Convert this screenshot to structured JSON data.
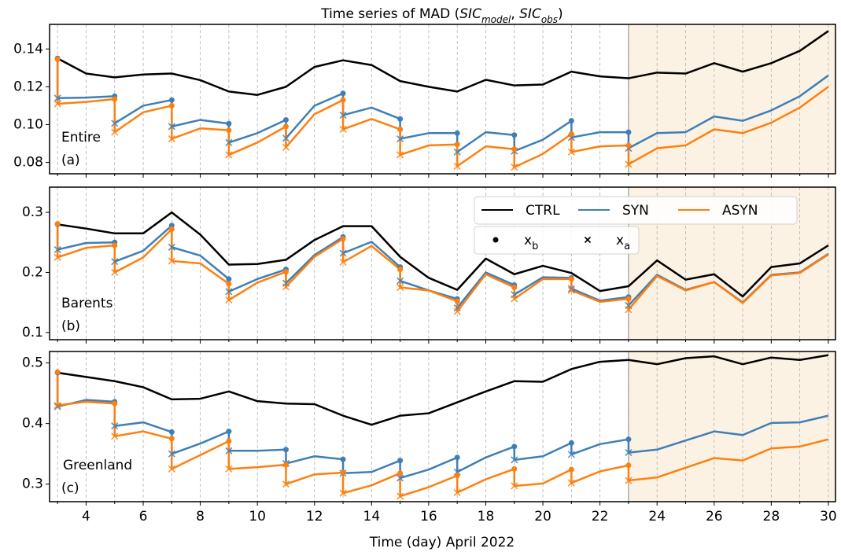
{
  "chart_data": [
    {
      "type": "line",
      "title_parts": [
        {
          "text": "Time series of MAD ("
        },
        {
          "text": "SIC",
          "italic": true
        },
        {
          "text": "model",
          "italic": true,
          "sub": true
        },
        {
          "text": ", "
        },
        {
          "text": "SIC",
          "italic": true
        },
        {
          "text": "obs",
          "italic": true,
          "sub": true
        },
        {
          "text": ")"
        }
      ],
      "region": "Entire",
      "label": "(a)",
      "xlim": [
        2.72,
        30.25
      ],
      "xticks": [
        4,
        6,
        8,
        10,
        12,
        14,
        16,
        18,
        20,
        22,
        24,
        26,
        28,
        30
      ],
      "xminor_ticks": [
        3,
        5,
        7,
        9,
        11,
        13,
        15,
        17,
        19,
        21,
        23,
        25,
        27,
        29
      ],
      "show_xtick_labels": false,
      "ylim": [
        0.074,
        0.153
      ],
      "yticks": [
        0.08,
        {
          "value": 0.1,
          "label": "0.10"
        },
        0.12,
        0.14
      ],
      "grid": true,
      "shaded_from": 23,
      "shade_color": "#fcf2e4",
      "series": [
        {
          "name": "CTRL",
          "color": "#000000",
          "x": [
            3,
            4,
            5,
            6,
            7,
            8,
            9,
            10,
            11,
            12,
            13,
            14,
            15,
            16,
            17,
            18,
            19,
            20,
            21,
            22,
            23,
            24,
            25,
            26,
            27,
            28,
            29,
            30
          ],
          "values": [
            0.135,
            0.127,
            0.125,
            0.1265,
            0.127,
            0.1235,
            0.1175,
            0.1157,
            0.12,
            0.1305,
            0.134,
            0.1315,
            0.123,
            0.12,
            0.1175,
            0.1237,
            0.1207,
            0.1212,
            0.128,
            0.1255,
            0.1245,
            0.1275,
            0.127,
            0.1325,
            0.128,
            0.1325,
            0.139,
            0.1495
          ]
        },
        {
          "name": "SYN",
          "color": "#3f7fb6",
          "x": [
            3,
            3,
            4,
            5,
            5,
            6,
            7,
            7,
            8,
            9,
            9,
            10,
            11,
            11,
            12,
            13,
            13,
            14,
            15,
            15,
            16,
            17,
            17,
            18,
            19,
            19,
            20,
            21,
            21,
            22,
            23,
            23,
            24,
            25,
            26,
            27,
            28,
            29,
            30
          ],
          "markers": [
            "o",
            "x",
            null,
            "o",
            "x",
            null,
            "o",
            "x",
            null,
            "o",
            "x",
            null,
            "o",
            "x",
            null,
            "o",
            "x",
            null,
            "o",
            "x",
            null,
            "o",
            "x",
            null,
            "o",
            "x",
            null,
            "o",
            "x",
            null,
            "o",
            "x",
            null,
            null,
            null,
            null,
            null,
            null,
            null
          ],
          "values": [
            0.135,
            0.114,
            0.1143,
            0.115,
            0.1007,
            0.11,
            0.113,
            0.099,
            0.1025,
            0.1005,
            0.0905,
            0.0955,
            0.1025,
            0.0928,
            0.11,
            0.1165,
            0.105,
            0.109,
            0.103,
            0.0925,
            0.0955,
            0.0955,
            0.0855,
            0.096,
            0.0945,
            0.086,
            0.092,
            0.102,
            0.0932,
            0.096,
            0.096,
            0.0875,
            0.0955,
            0.096,
            0.1043,
            0.102,
            0.1075,
            0.115,
            0.126
          ]
        },
        {
          "name": "ASYN",
          "color": "#ff7f0e",
          "x": [
            3,
            3,
            4,
            5,
            5,
            6,
            7,
            7,
            8,
            9,
            9,
            10,
            11,
            11,
            12,
            13,
            13,
            14,
            15,
            15,
            16,
            17,
            17,
            18,
            19,
            19,
            20,
            21,
            21,
            22,
            23,
            23,
            24,
            25,
            26,
            27,
            28,
            29,
            30
          ],
          "markers": [
            "o",
            "x",
            null,
            "o",
            "x",
            null,
            "o",
            "x",
            null,
            "o",
            "x",
            null,
            "o",
            "x",
            null,
            "o",
            "x",
            null,
            "o",
            "x",
            null,
            "o",
            "x",
            null,
            "o",
            "x",
            null,
            "o",
            "x",
            null,
            "o",
            "x",
            null,
            null,
            null,
            null,
            null,
            null,
            null
          ],
          "values": [
            0.1345,
            0.111,
            0.112,
            0.1135,
            0.096,
            0.1065,
            0.11,
            0.0925,
            0.098,
            0.097,
            0.084,
            0.0905,
            0.099,
            0.088,
            0.1055,
            0.113,
            0.0975,
            0.103,
            0.0975,
            0.084,
            0.089,
            0.0895,
            0.078,
            0.0885,
            0.087,
            0.0775,
            0.0845,
            0.095,
            0.0855,
            0.0885,
            0.089,
            0.079,
            0.0875,
            0.089,
            0.0975,
            0.0955,
            0.101,
            0.109,
            0.12
          ]
        }
      ]
    },
    {
      "type": "line",
      "region": "Barents",
      "label": "(b)",
      "xlim": [
        2.72,
        30.25
      ],
      "xticks": [
        4,
        6,
        8,
        10,
        12,
        14,
        16,
        18,
        20,
        22,
        24,
        26,
        28,
        30
      ],
      "xminor_ticks": [
        3,
        5,
        7,
        9,
        11,
        13,
        15,
        17,
        19,
        21,
        23,
        25,
        27,
        29
      ],
      "show_xtick_labels": false,
      "ylim": [
        0.088,
        0.342
      ],
      "yticks": [
        0.1,
        0.2,
        0.3
      ],
      "grid": true,
      "shaded_from": 23,
      "shade_color": "#fcf2e4",
      "legend": true,
      "marker_legend": [
        {
          "marker": "o",
          "text": "x",
          "sub": "b"
        },
        {
          "marker": "x",
          "text": "x",
          "sub": "a"
        }
      ],
      "series": [
        {
          "name": "CTRL",
          "color": "#000000",
          "x": [
            3,
            4,
            5,
            6,
            7,
            8,
            9,
            10,
            11,
            12,
            13,
            14,
            15,
            16,
            17,
            18,
            19,
            20,
            21,
            22,
            23,
            24,
            25,
            26,
            27,
            28,
            29,
            30
          ],
          "values": [
            0.28,
            0.273,
            0.265,
            0.265,
            0.3,
            0.263,
            0.213,
            0.214,
            0.221,
            0.254,
            0.277,
            0.277,
            0.226,
            0.191,
            0.171,
            0.223,
            0.197,
            0.211,
            0.199,
            0.169,
            0.177,
            0.22,
            0.188,
            0.197,
            0.16,
            0.209,
            0.215,
            0.245
          ]
        },
        {
          "name": "SYN",
          "color": "#3f7fb6",
          "x": [
            3,
            3,
            4,
            5,
            5,
            6,
            7,
            7,
            8,
            9,
            9,
            10,
            11,
            11,
            12,
            13,
            13,
            14,
            15,
            15,
            16,
            17,
            17,
            18,
            19,
            19,
            20,
            21,
            21,
            22,
            23,
            23,
            24,
            25,
            26,
            27,
            28,
            29,
            30
          ],
          "markers": [
            "o",
            "x",
            null,
            "o",
            "x",
            null,
            "o",
            "x",
            null,
            "o",
            "x",
            null,
            "o",
            "x",
            null,
            "o",
            "x",
            null,
            "o",
            "x",
            null,
            "o",
            "x",
            null,
            "o",
            "x",
            null,
            "o",
            "x",
            null,
            "o",
            "x",
            null,
            null,
            null,
            null,
            null,
            null,
            null
          ],
          "values": [
            0.28,
            0.238,
            0.249,
            0.25,
            0.218,
            0.236,
            0.278,
            0.242,
            0.228,
            0.189,
            0.168,
            0.189,
            0.205,
            0.182,
            0.229,
            0.259,
            0.232,
            0.251,
            0.209,
            0.186,
            0.17,
            0.156,
            0.141,
            0.2,
            0.179,
            0.163,
            0.192,
            0.191,
            0.173,
            0.153,
            0.159,
            0.145,
            0.196,
            0.171,
            0.184,
            0.15,
            0.196,
            0.2,
            0.231
          ]
        },
        {
          "name": "ASYN",
          "color": "#ff7f0e",
          "x": [
            3,
            3,
            4,
            5,
            5,
            6,
            7,
            7,
            8,
            9,
            9,
            10,
            11,
            11,
            12,
            13,
            13,
            14,
            15,
            15,
            16,
            17,
            17,
            18,
            19,
            19,
            20,
            21,
            21,
            22,
            23,
            23,
            24,
            25,
            26,
            27,
            28,
            29,
            30
          ],
          "markers": [
            "o",
            "x",
            null,
            "o",
            "x",
            null,
            "o",
            "x",
            null,
            "o",
            "x",
            null,
            "o",
            "x",
            null,
            "o",
            "x",
            null,
            "o",
            "x",
            null,
            "o",
            "x",
            null,
            "o",
            "x",
            null,
            "o",
            "x",
            null,
            "o",
            "x",
            null,
            null,
            null,
            null,
            null,
            null,
            null
          ],
          "values": [
            0.281,
            0.225,
            0.241,
            0.245,
            0.2,
            0.225,
            0.272,
            0.219,
            0.215,
            0.181,
            0.154,
            0.183,
            0.201,
            0.176,
            0.226,
            0.256,
            0.217,
            0.244,
            0.205,
            0.175,
            0.17,
            0.152,
            0.135,
            0.197,
            0.175,
            0.156,
            0.189,
            0.189,
            0.17,
            0.151,
            0.156,
            0.138,
            0.194,
            0.17,
            0.184,
            0.149,
            0.195,
            0.199,
            0.23
          ]
        }
      ]
    },
    {
      "type": "line",
      "region": "Greenland",
      "label": "(c)",
      "xlabel": "Time (day) April 2022",
      "xlim": [
        2.72,
        30.25
      ],
      "xticks": [
        4,
        6,
        8,
        10,
        12,
        14,
        16,
        18,
        20,
        22,
        24,
        26,
        28,
        30
      ],
      "xminor_ticks": [
        3,
        5,
        7,
        9,
        11,
        13,
        15,
        17,
        19,
        21,
        23,
        25,
        27,
        29
      ],
      "show_xtick_labels": true,
      "ylim": [
        0.271,
        0.519
      ],
      "yticks": [
        0.3,
        0.4,
        0.5
      ],
      "grid": true,
      "shaded_from": 23,
      "shade_color": "#fcf2e4",
      "series": [
        {
          "name": "CTRL",
          "color": "#000000",
          "x": [
            3,
            4,
            5,
            6,
            7,
            8,
            9,
            10,
            11,
            12,
            13,
            14,
            15,
            16,
            17,
            18,
            19,
            20,
            21,
            22,
            23,
            24,
            25,
            26,
            27,
            28,
            29,
            30
          ],
          "values": [
            0.484,
            0.477,
            0.47,
            0.46,
            0.44,
            0.441,
            0.453,
            0.437,
            0.433,
            0.432,
            0.413,
            0.398,
            0.413,
            0.417,
            0.435,
            0.453,
            0.47,
            0.469,
            0.49,
            0.502,
            0.505,
            0.498,
            0.508,
            0.511,
            0.498,
            0.509,
            0.505,
            0.513
          ]
        },
        {
          "name": "SYN",
          "color": "#3f7fb6",
          "x": [
            3,
            3,
            4,
            5,
            5,
            6,
            7,
            7,
            8,
            9,
            9,
            10,
            11,
            11,
            12,
            13,
            13,
            14,
            15,
            15,
            16,
            17,
            17,
            18,
            19,
            19,
            20,
            21,
            21,
            22,
            23,
            23,
            24,
            25,
            26,
            27,
            28,
            29,
            30
          ],
          "markers": [
            "o",
            "x",
            null,
            "o",
            "x",
            null,
            "o",
            "x",
            null,
            "o",
            "x",
            null,
            "o",
            "x",
            null,
            "o",
            "x",
            null,
            "o",
            "x",
            null,
            "o",
            "x",
            null,
            "o",
            "x",
            null,
            "o",
            "x",
            null,
            "o",
            "x",
            null,
            null,
            null,
            null,
            null,
            null,
            null
          ],
          "values": [
            0.484,
            0.428,
            0.439,
            0.436,
            0.396,
            0.402,
            0.386,
            0.35,
            0.367,
            0.387,
            0.355,
            0.355,
            0.357,
            0.334,
            0.346,
            0.341,
            0.318,
            0.32,
            0.339,
            0.31,
            0.324,
            0.344,
            0.32,
            0.344,
            0.362,
            0.34,
            0.346,
            0.368,
            0.349,
            0.366,
            0.374,
            0.352,
            0.357,
            0.372,
            0.387,
            0.381,
            0.401,
            0.402,
            0.413
          ]
        },
        {
          "name": "ASYN",
          "color": "#ff7f0e",
          "x": [
            3,
            3,
            4,
            5,
            5,
            6,
            7,
            7,
            8,
            9,
            9,
            10,
            11,
            11,
            12,
            13,
            13,
            14,
            15,
            15,
            16,
            17,
            17,
            18,
            19,
            19,
            20,
            21,
            21,
            22,
            23,
            23,
            24,
            25,
            26,
            27,
            28,
            29,
            30
          ],
          "markers": [
            "o",
            "x",
            null,
            "o",
            "x",
            null,
            "o",
            "x",
            null,
            "o",
            "x",
            null,
            "o",
            "x",
            null,
            "o",
            "x",
            null,
            "o",
            "x",
            null,
            "o",
            "x",
            null,
            "o",
            "x",
            null,
            "o",
            "x",
            null,
            "o",
            "x",
            null,
            null,
            null,
            null,
            null,
            null,
            null
          ],
          "values": [
            0.485,
            0.43,
            0.436,
            0.433,
            0.379,
            0.387,
            0.375,
            0.325,
            0.348,
            0.371,
            0.325,
            0.328,
            0.332,
            0.3,
            0.316,
            0.319,
            0.285,
            0.298,
            0.318,
            0.28,
            0.295,
            0.314,
            0.286,
            0.308,
            0.325,
            0.297,
            0.301,
            0.324,
            0.302,
            0.321,
            0.331,
            0.306,
            0.311,
            0.327,
            0.343,
            0.339,
            0.359,
            0.362,
            0.374
          ]
        }
      ]
    }
  ]
}
